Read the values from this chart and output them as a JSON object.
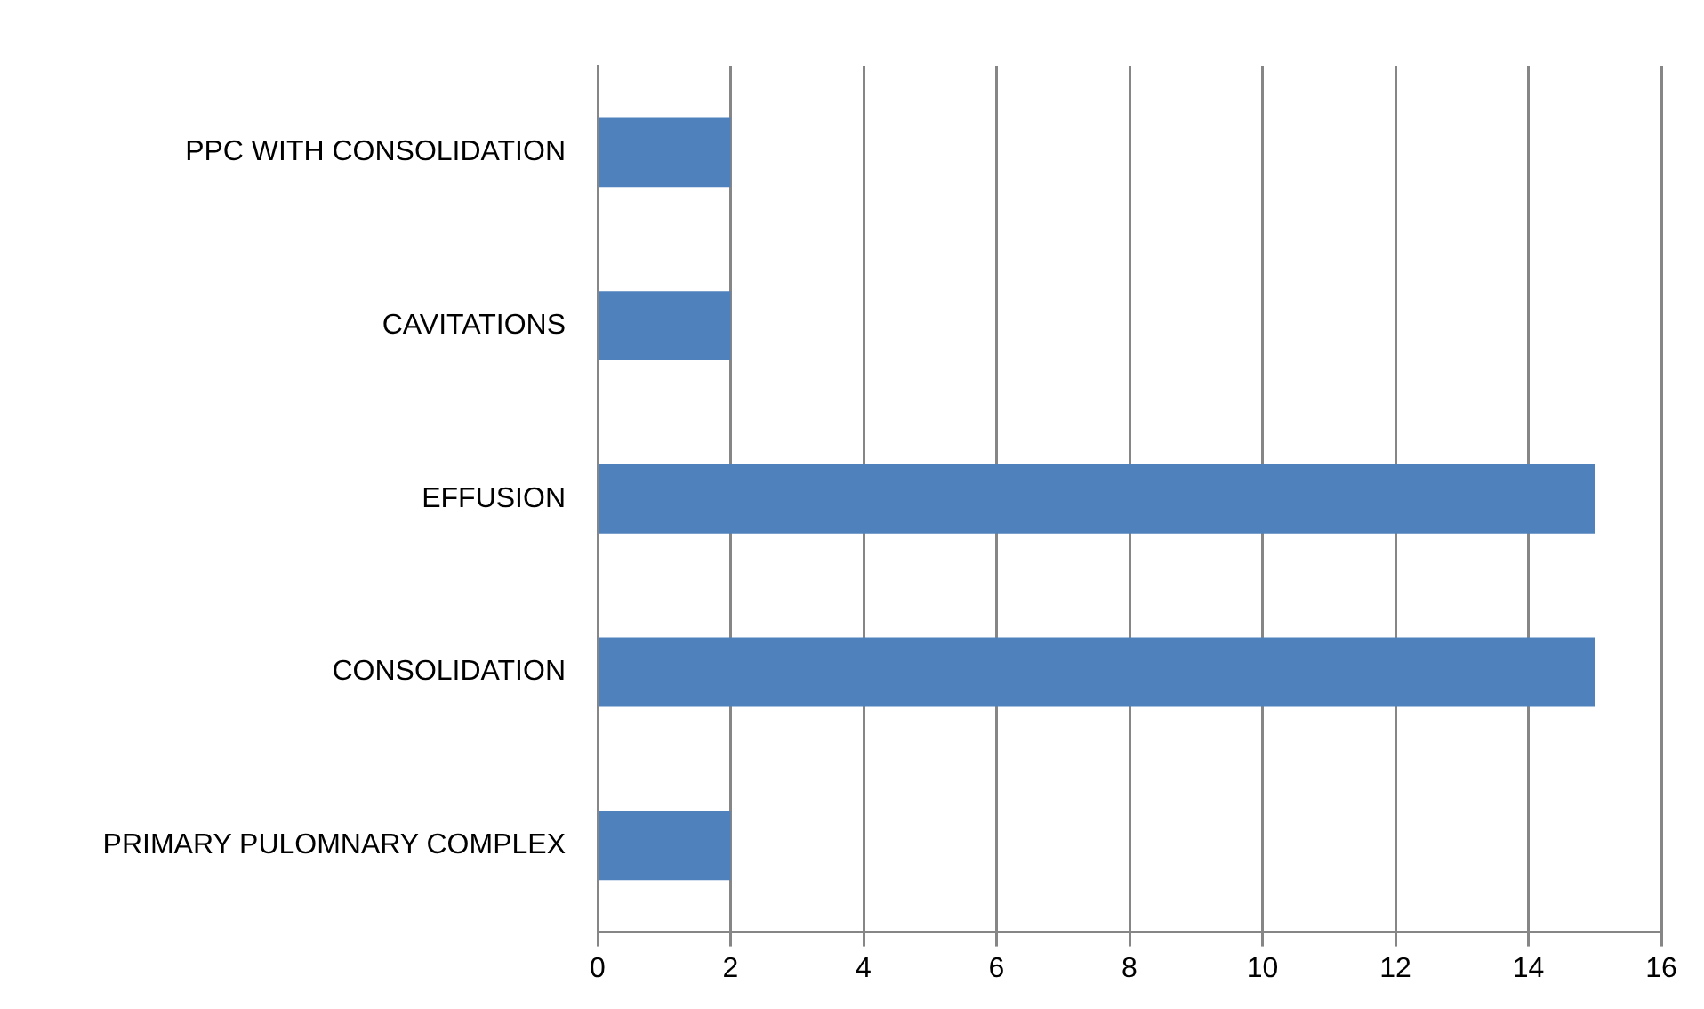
{
  "chart_data": {
    "type": "bar",
    "orientation": "horizontal",
    "categories": [
      "PPC WITH CONSOLIDATION",
      "CAVITATIONS",
      "EFFUSION",
      "CONSOLIDATION",
      "PRIMARY PULOMNARY COMPLEX"
    ],
    "values": [
      2,
      2,
      15,
      15,
      2
    ],
    "color": "#4f81bd",
    "xlim": [
      0,
      16
    ],
    "xticks": [
      0,
      2,
      4,
      6,
      8,
      10,
      12,
      14,
      16
    ],
    "grid": "x",
    "legend": false
  }
}
